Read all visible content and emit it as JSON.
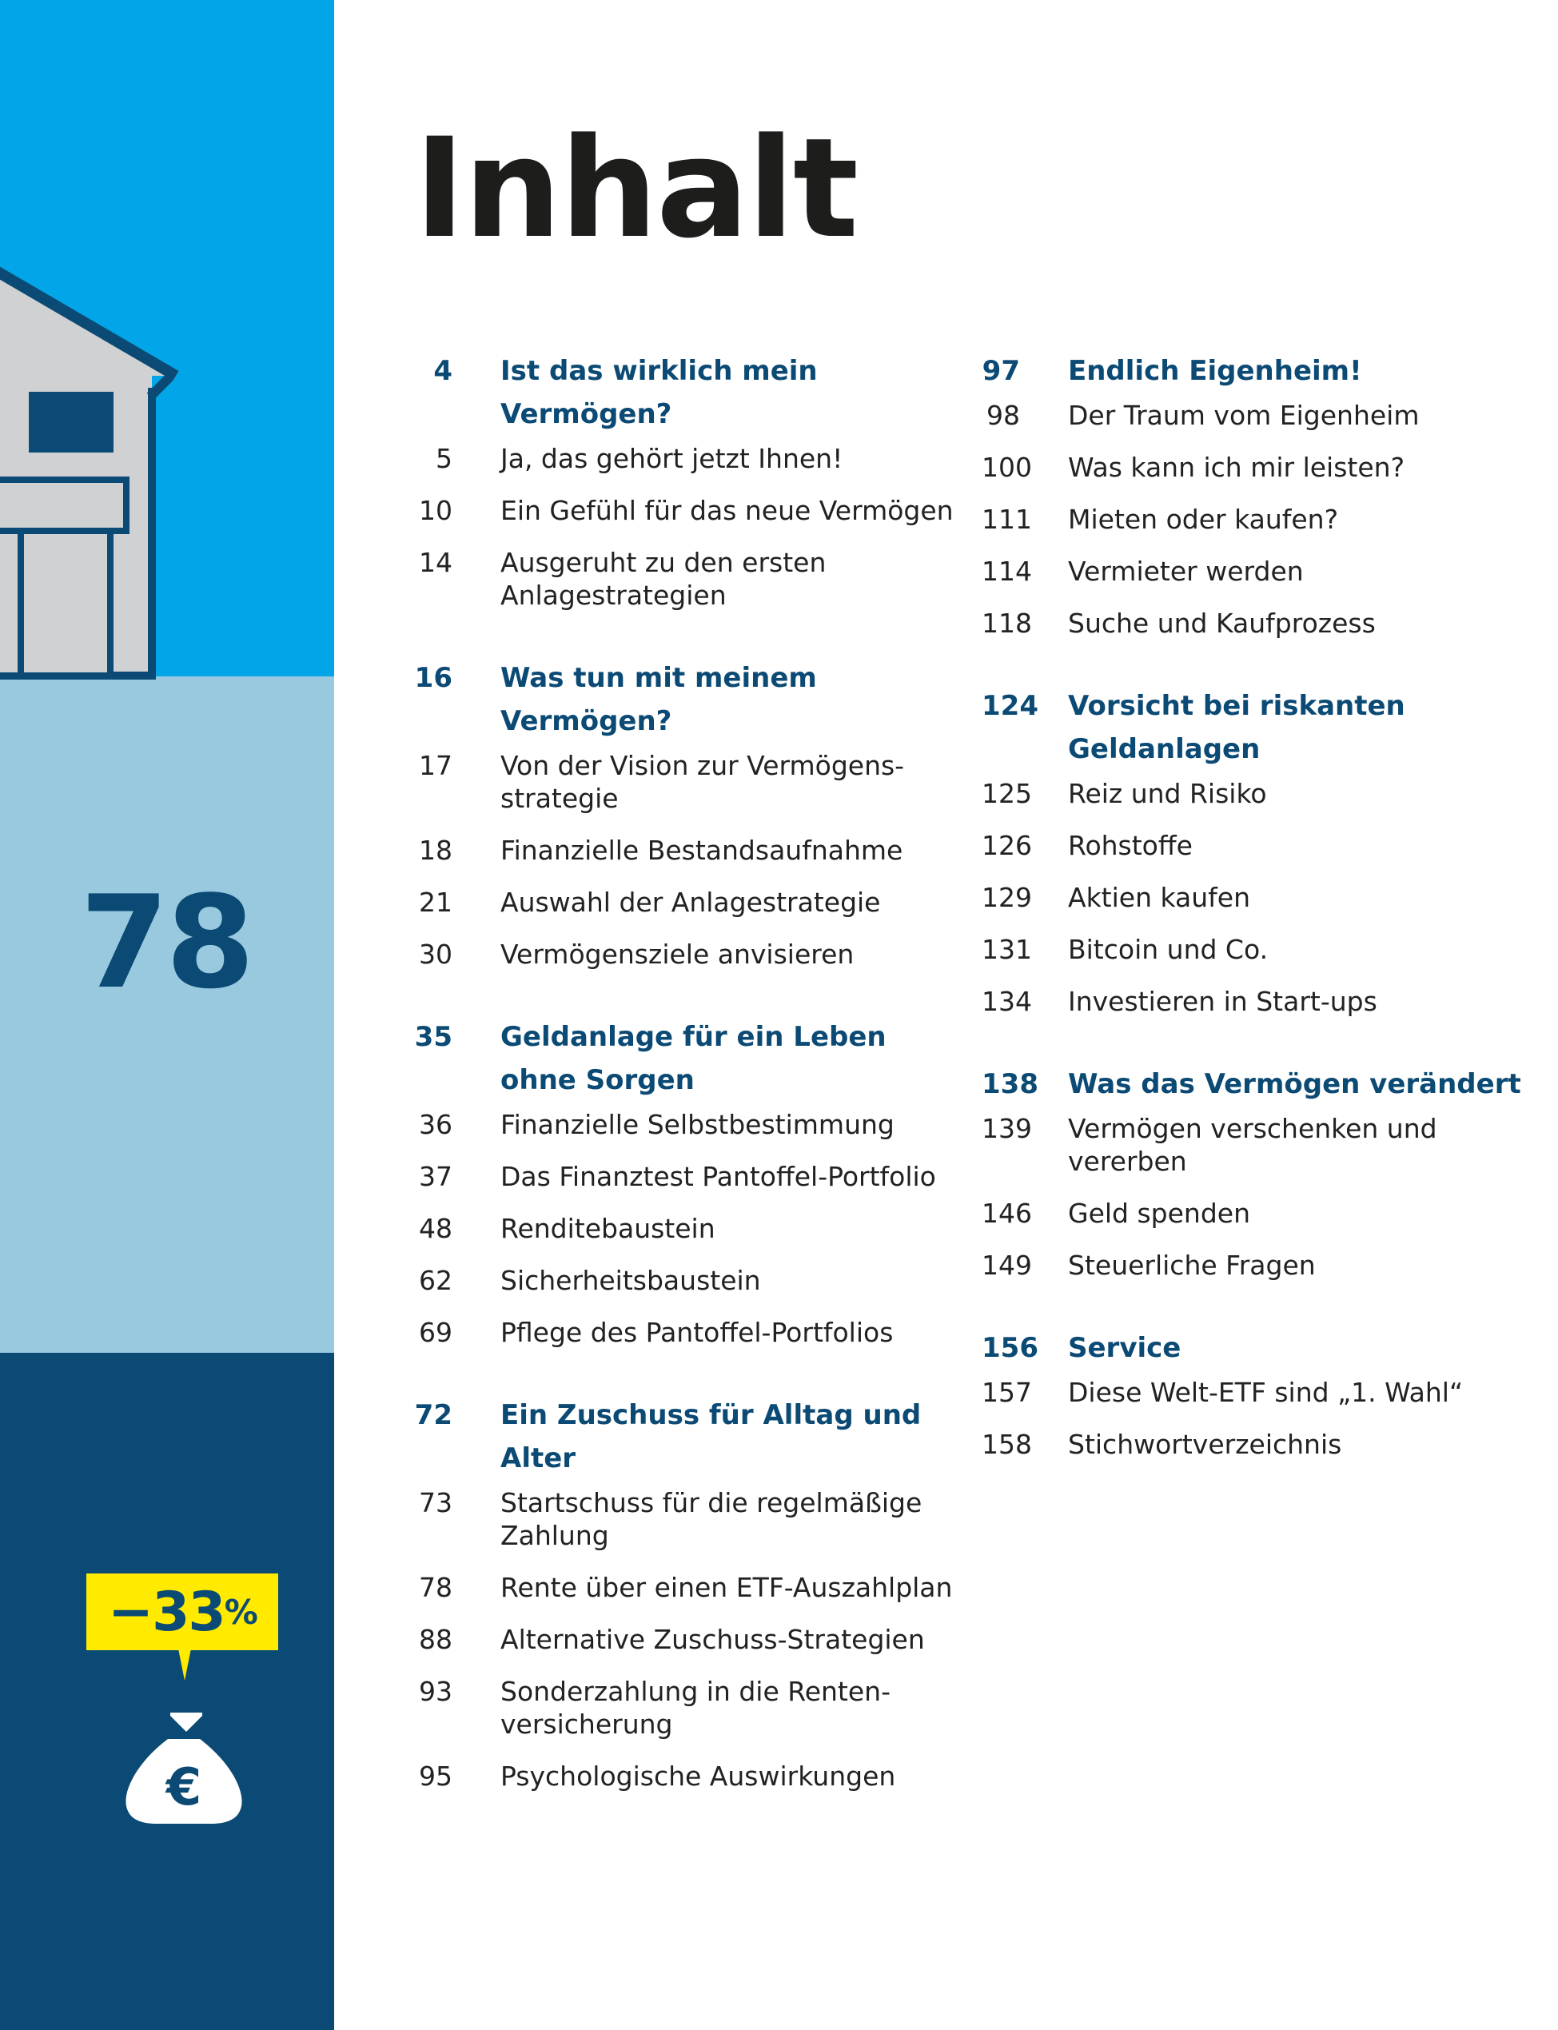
{
  "title": "Inhalt",
  "sidebar": {
    "big_number": "78",
    "badge_value": "−33",
    "badge_unit": "%",
    "badge_icon": "euro-money-bag-icon",
    "colors": {
      "top": "#02a6e8",
      "middle": "#98c9df",
      "bottom": "#0b4a74",
      "badge": "#ffea00"
    }
  },
  "toc": {
    "left": [
      {
        "num": "4",
        "title": "Ist das wirklich mein Vermögen?",
        "items": [
          {
            "num": "5",
            "text": "Ja, das gehört jetzt Ihnen!"
          },
          {
            "num": "10",
            "text": "Ein Gefühl für das neue Vermögen"
          },
          {
            "num": "14",
            "text": "Ausgeruht zu den ersten Anlagestrategien"
          }
        ]
      },
      {
        "num": "16",
        "title": "Was tun mit meinem Vermögen?",
        "items": [
          {
            "num": "17",
            "text": "Von der Vision zur Vermögens-strategie"
          },
          {
            "num": "18",
            "text": "Finanzielle Bestandsaufnahme"
          },
          {
            "num": "21",
            "text": "Auswahl der Anlagestrategie"
          },
          {
            "num": "30",
            "text": "Vermögensziele anvisieren"
          }
        ]
      },
      {
        "num": "35",
        "title": "Geldanlage für ein Leben ohne Sorgen",
        "items": [
          {
            "num": "36",
            "text": "Finanzielle Selbstbestimmung"
          },
          {
            "num": "37",
            "text": "Das Finanztest Pantoffel-Portfolio"
          },
          {
            "num": "48",
            "text": "Renditebaustein"
          },
          {
            "num": "62",
            "text": "Sicherheitsbaustein"
          },
          {
            "num": "69",
            "text": "Pflege des Pantoffel-Portfolios"
          }
        ]
      },
      {
        "num": "72",
        "title": "Ein Zuschuss für Alltag und Alter",
        "items": [
          {
            "num": "73",
            "text": "Startschuss für die regelmäßige Zahlung"
          },
          {
            "num": "78",
            "text": "Rente über einen ETF-Auszahlplan"
          },
          {
            "num": "88",
            "text": "Alternative Zuschuss-Strategien"
          },
          {
            "num": "93",
            "text": "Sonderzahlung in die Renten-versicherung"
          },
          {
            "num": "95",
            "text": "Psychologische Auswirkungen"
          }
        ]
      }
    ],
    "right": [
      {
        "num": "97",
        "title": "Endlich Eigenheim!",
        "items": [
          {
            "num": "98",
            "text": "Der Traum vom Eigenheim"
          },
          {
            "num": "100",
            "text": "Was kann ich mir leisten?"
          },
          {
            "num": "111",
            "text": "Mieten oder kaufen?"
          },
          {
            "num": "114",
            "text": "Vermieter werden"
          },
          {
            "num": "118",
            "text": "Suche und Kaufprozess"
          }
        ]
      },
      {
        "num": "124",
        "title": "Vorsicht bei riskanten Geldanlagen",
        "items": [
          {
            "num": "125",
            "text": "Reiz und Risiko"
          },
          {
            "num": "126",
            "text": "Rohstoffe"
          },
          {
            "num": "129",
            "text": "Aktien kaufen"
          },
          {
            "num": "131",
            "text": "Bitcoin und Co."
          },
          {
            "num": "134",
            "text": "Investieren in Start-ups"
          }
        ]
      },
      {
        "num": "138",
        "title": "Was das Vermögen verändert",
        "items": [
          {
            "num": "139",
            "text": "Vermögen verschenken und vererben"
          },
          {
            "num": "146",
            "text": "Geld spenden"
          },
          {
            "num": "149",
            "text": "Steuerliche Fragen"
          }
        ]
      },
      {
        "num": "156",
        "title": "Service",
        "items": [
          {
            "num": "157",
            "text": "Diese Welt-ETF sind „1. Wahl“"
          },
          {
            "num": "158",
            "text": "Stichwortverzeichnis"
          }
        ]
      }
    ]
  }
}
